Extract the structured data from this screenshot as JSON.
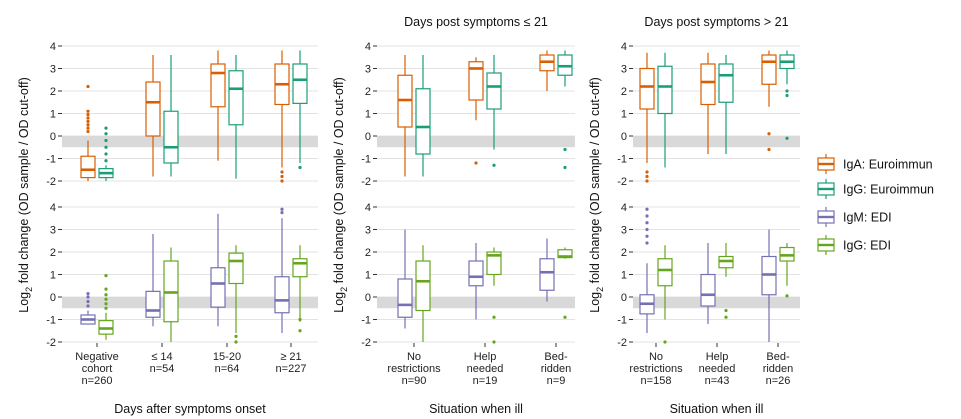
{
  "chart_data": {
    "type": "box",
    "colors": {
      "igA_euroimmun": "#d95f02",
      "igG_euroimmun": "#1b9e77",
      "igM_edi": "#7570b3",
      "igG_edi": "#66a61e",
      "cutoff_band": "#d9d9d9",
      "grid": "#e3e3e3"
    },
    "ylabel_prefix": "Log",
    "ylabel_sub": "2",
    "ylabel_suffix": " fold change (OD sample / OD cut-off)",
    "ylim": [
      -2,
      4
    ],
    "yticks": [
      "-2",
      "-1",
      "0",
      "1",
      "2",
      "3",
      "4"
    ],
    "legend": {
      "placement": "right",
      "entries": [
        "IgA: Euroimmun",
        "IgG: Euroimmun",
        "IgM: EDI",
        "IgG: EDI"
      ]
    },
    "panels": [
      {
        "title": "",
        "xlabel": "Days after symptoms onset",
        "categories": [
          [
            "Negative",
            "cohort",
            "n=260"
          ],
          [
            "≤ 14",
            "n=54"
          ],
          [
            "15-20",
            "n=64"
          ],
          [
            "≥ 21",
            "n=227"
          ]
        ],
        "top": {
          "series": [
            {
              "key": "igA_euroimmun",
              "boxes": [
                {
                  "lw": -2.0,
                  "q1": -1.85,
                  "med": -1.5,
                  "q3": -0.9,
                  "uw": -0.2,
                  "out": [
                    0.2,
                    0.35,
                    0.5,
                    0.65,
                    0.8,
                    0.95,
                    1.1,
                    2.2
                  ]
                },
                {
                  "lw": -1.8,
                  "q1": 0.0,
                  "med": 1.5,
                  "q3": 2.4,
                  "uw": 3.6,
                  "out": []
                },
                {
                  "lw": -1.1,
                  "q1": 1.3,
                  "med": 2.8,
                  "q3": 3.2,
                  "uw": 3.8,
                  "out": []
                },
                {
                  "lw": -1.4,
                  "q1": 1.4,
                  "med": 2.3,
                  "q3": 3.2,
                  "uw": 3.8,
                  "out": [
                    -1.6,
                    -1.8,
                    -2.0
                  ]
                }
              ]
            },
            {
              "key": "igG_euroimmun",
              "boxes": [
                {
                  "lw": -2.0,
                  "q1": -1.85,
                  "med": -1.65,
                  "q3": -1.45,
                  "uw": -1.3,
                  "out": [
                    -1.1,
                    -0.8,
                    -0.5,
                    -0.2,
                    0.1,
                    0.35
                  ]
                },
                {
                  "lw": -1.8,
                  "q1": -1.2,
                  "med": -0.5,
                  "q3": 1.1,
                  "uw": 3.6,
                  "out": []
                },
                {
                  "lw": -1.9,
                  "q1": 0.5,
                  "med": 2.1,
                  "q3": 2.9,
                  "uw": 3.6,
                  "out": []
                },
                {
                  "lw": -1.2,
                  "q1": 1.45,
                  "med": 2.5,
                  "q3": 3.2,
                  "uw": 3.8,
                  "out": [
                    -1.4
                  ]
                }
              ]
            }
          ]
        },
        "bottom": {
          "series": [
            {
              "key": "igM_edi",
              "boxes": [
                {
                  "lw": -1.2,
                  "q1": -1.2,
                  "med": -1.0,
                  "q3": -0.8,
                  "uw": -0.6,
                  "out": [
                    -0.4,
                    -0.2,
                    0.0,
                    0.15
                  ]
                },
                {
                  "lw": -1.3,
                  "q1": -0.9,
                  "med": -0.6,
                  "q3": 0.25,
                  "uw": 2.8,
                  "out": []
                },
                {
                  "lw": -1.3,
                  "q1": -0.45,
                  "med": 0.6,
                  "q3": 1.3,
                  "uw": 3.7,
                  "out": []
                },
                {
                  "lw": -1.6,
                  "q1": -0.7,
                  "med": -0.15,
                  "q3": 0.9,
                  "uw": 3.5,
                  "out": [
                    3.75,
                    3.9
                  ]
                }
              ]
            },
            {
              "key": "igG_edi",
              "boxes": [
                {
                  "lw": -1.9,
                  "q1": -1.65,
                  "med": -1.4,
                  "q3": -1.05,
                  "uw": -0.7,
                  "out": [
                    -0.5,
                    -0.3,
                    -0.1,
                    0.1,
                    0.35,
                    0.95
                  ]
                },
                {
                  "lw": -2.0,
                  "q1": -1.1,
                  "med": 0.2,
                  "q3": 1.6,
                  "uw": 2.2,
                  "out": []
                },
                {
                  "lw": -1.6,
                  "q1": 0.6,
                  "med": 1.6,
                  "q3": 1.95,
                  "uw": 2.3,
                  "out": [
                    -1.75,
                    -2.0
                  ]
                },
                {
                  "lw": -1.1,
                  "q1": 0.9,
                  "med": 1.5,
                  "q3": 1.7,
                  "uw": 2.3,
                  "out": [
                    -1.0,
                    -1.5
                  ]
                }
              ]
            }
          ]
        }
      },
      {
        "title": "Days post symptoms ≤ 21",
        "xlabel": "Situation when ill",
        "categories": [
          [
            "No",
            "restrictions",
            "n=90"
          ],
          [
            "Help",
            "needed",
            "n=19"
          ],
          [
            "Bed-",
            "ridden",
            "n=9"
          ]
        ],
        "top": {
          "series": [
            {
              "key": "igA_euroimmun",
              "boxes": [
                {
                  "lw": -1.8,
                  "q1": 0.4,
                  "med": 1.6,
                  "q3": 2.7,
                  "uw": 3.6,
                  "out": []
                },
                {
                  "lw": 0.7,
                  "q1": 1.6,
                  "med": 3.0,
                  "q3": 3.3,
                  "uw": 3.5,
                  "out": [
                    -1.2
                  ]
                },
                {
                  "lw": 2.0,
                  "q1": 2.9,
                  "med": 3.3,
                  "q3": 3.6,
                  "uw": 3.8,
                  "out": []
                }
              ]
            },
            {
              "key": "igG_euroimmun",
              "boxes": [
                {
                  "lw": -1.8,
                  "q1": -0.8,
                  "med": 0.4,
                  "q3": 2.1,
                  "uw": 3.6,
                  "out": []
                },
                {
                  "lw": -0.6,
                  "q1": 1.2,
                  "med": 2.2,
                  "q3": 2.8,
                  "uw": 3.6,
                  "out": [
                    -1.3
                  ]
                },
                {
                  "lw": 2.2,
                  "q1": 2.7,
                  "med": 3.1,
                  "q3": 3.6,
                  "uw": 3.8,
                  "out": [
                    -0.6,
                    -1.4
                  ]
                }
              ]
            }
          ]
        },
        "bottom": {
          "series": [
            {
              "key": "igM_edi",
              "boxes": [
                {
                  "lw": -1.4,
                  "q1": -0.9,
                  "med": -0.35,
                  "q3": 0.8,
                  "uw": 3.0,
                  "out": []
                },
                {
                  "lw": -1.0,
                  "q1": 0.5,
                  "med": 0.9,
                  "q3": 1.6,
                  "uw": 2.4,
                  "out": []
                },
                {
                  "lw": -0.2,
                  "q1": 0.3,
                  "med": 1.1,
                  "q3": 1.7,
                  "uw": 2.6,
                  "out": []
                }
              ]
            },
            {
              "key": "igG_edi",
              "boxes": [
                {
                  "lw": -2.0,
                  "q1": -0.6,
                  "med": 0.7,
                  "q3": 1.6,
                  "uw": 2.3,
                  "out": []
                },
                {
                  "lw": 0.5,
                  "q1": 1.0,
                  "med": 1.85,
                  "q3": 2.0,
                  "uw": 2.2,
                  "out": [
                    -0.9,
                    -2.0
                  ]
                },
                {
                  "lw": 1.7,
                  "q1": 1.75,
                  "med": 1.8,
                  "q3": 2.1,
                  "uw": 2.2,
                  "out": [
                    -0.9
                  ]
                }
              ]
            }
          ]
        }
      },
      {
        "title": "Days post symptoms > 21",
        "xlabel": "Situation when ill",
        "categories": [
          [
            "No",
            "restrictions",
            "n=158"
          ],
          [
            "Help",
            "needed",
            "n=43"
          ],
          [
            "Bed-",
            "ridden",
            "n=26"
          ]
        ],
        "top": {
          "series": [
            {
              "key": "igA_euroimmun",
              "boxes": [
                {
                  "lw": -1.2,
                  "q1": 1.2,
                  "med": 2.2,
                  "q3": 3.0,
                  "uw": 3.7,
                  "out": [
                    -1.6,
                    -1.8,
                    -2.0
                  ]
                },
                {
                  "lw": -0.8,
                  "q1": 1.4,
                  "med": 2.4,
                  "q3": 3.2,
                  "uw": 3.7,
                  "out": []
                },
                {
                  "lw": 1.3,
                  "q1": 2.3,
                  "med": 3.3,
                  "q3": 3.6,
                  "uw": 3.8,
                  "out": [
                    0.1,
                    -0.6
                  ]
                }
              ]
            },
            {
              "key": "igG_euroimmun",
              "boxes": [
                {
                  "lw": -1.4,
                  "q1": 1.0,
                  "med": 2.2,
                  "q3": 3.1,
                  "uw": 3.7,
                  "out": []
                },
                {
                  "lw": -0.8,
                  "q1": 1.5,
                  "med": 2.7,
                  "q3": 3.2,
                  "uw": 3.6,
                  "out": []
                },
                {
                  "lw": 2.3,
                  "q1": 3.0,
                  "med": 3.3,
                  "q3": 3.6,
                  "uw": 3.8,
                  "out": [
                    2.0,
                    1.8,
                    -0.1
                  ]
                }
              ]
            }
          ]
        },
        "bottom": {
          "series": [
            {
              "key": "igM_edi",
              "boxes": [
                {
                  "lw": -1.6,
                  "q1": -0.75,
                  "med": -0.3,
                  "q3": 0.1,
                  "uw": 1.5,
                  "out": [
                    2.4,
                    2.7,
                    3.0,
                    3.3,
                    3.6,
                    3.9
                  ]
                },
                {
                  "lw": -1.2,
                  "q1": -0.4,
                  "med": 0.1,
                  "q3": 1.0,
                  "uw": 2.4,
                  "out": []
                },
                {
                  "lw": -2.0,
                  "q1": 0.1,
                  "med": 1.0,
                  "q3": 1.8,
                  "uw": 3.0,
                  "out": []
                }
              ]
            },
            {
              "key": "igG_edi",
              "boxes": [
                {
                  "lw": -1.0,
                  "q1": 0.5,
                  "med": 1.2,
                  "q3": 1.7,
                  "uw": 2.3,
                  "out": [
                    -2.0
                  ]
                },
                {
                  "lw": 0.9,
                  "q1": 1.3,
                  "med": 1.6,
                  "q3": 1.8,
                  "uw": 2.4,
                  "out": [
                    -0.6,
                    -0.9
                  ]
                },
                {
                  "lw": 0.5,
                  "q1": 1.6,
                  "med": 1.85,
                  "q3": 2.2,
                  "uw": 2.4,
                  "out": [
                    0.05
                  ]
                }
              ]
            }
          ]
        }
      }
    ]
  }
}
